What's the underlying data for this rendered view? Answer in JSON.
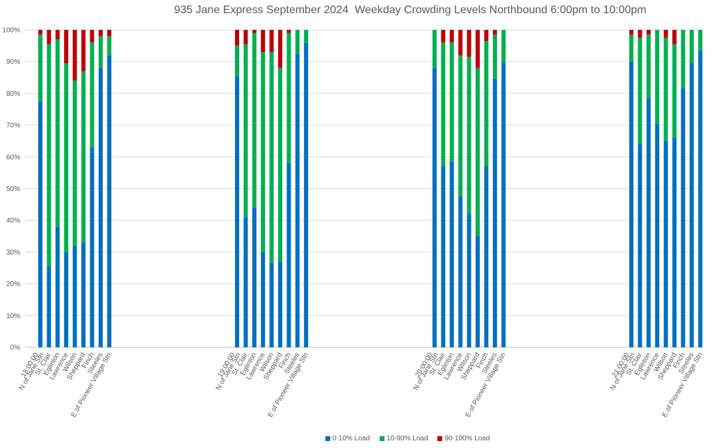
{
  "chart_data": {
    "type": "bar",
    "stacked": true,
    "title": "935 Jane Express September 2024  Weekday Crowding Levels Northbound 6:00pm to 10:00pm",
    "ylim": [
      0,
      100
    ],
    "y_ticks": [
      "0%",
      "10%",
      "20%",
      "30%",
      "40%",
      "50%",
      "60%",
      "70%",
      "80%",
      "90%",
      "100%"
    ],
    "grid": true,
    "legend_position": "bottom",
    "groups": [
      {
        "time": "18:00:00",
        "categories": [
          "N of Jane Stn",
          "St. Clair",
          "Eglinton",
          "Lawrence",
          "Wilson",
          "Sheppard",
          "Finch",
          "Steeles",
          "E of Pioneer Village Stn"
        ],
        "series": [
          {
            "name": "0-10% Load",
            "values": [
              77.5,
              25.5,
              38,
              30,
              32,
              33,
              63,
              88,
              92
            ]
          },
          {
            "name": "10-90% Load",
            "values": [
              21,
              70,
              59,
              59.5,
              52,
              54,
              33,
              10,
              6
            ]
          },
          {
            "name": "90-100% Load",
            "values": [
              1.5,
              4.5,
              3,
              10.5,
              16,
              13,
              4,
              2,
              2
            ]
          }
        ]
      },
      {
        "time": "19:00:00",
        "categories": [
          "N of Jane Stn",
          "St. Clair",
          "Eglinton",
          "Lawrence",
          "Wilson",
          "Sheppard",
          "Finch",
          "Steeles",
          "E of Pioneer Village Stn"
        ],
        "series": [
          {
            "name": "0-10% Load",
            "values": [
              85.5,
              41,
              44,
              30,
              26.5,
              27,
              58,
              92.5,
              96
            ]
          },
          {
            "name": "10-90% Load",
            "values": [
              9.5,
              54.5,
              55,
              63,
              66.5,
              61,
              41,
              7.5,
              4
            ]
          },
          {
            "name": "90-100% Load",
            "values": [
              5,
              4.5,
              1,
              7,
              7,
              12,
              1,
              0,
              0
            ]
          }
        ]
      },
      {
        "time": "20:00:00",
        "categories": [
          "N of Jane Stn",
          "St. Clair",
          "Eglinton",
          "Lawrence",
          "Wilson",
          "Sheppard",
          "Finch",
          "Steeles",
          "E of Pioneer Village Stn"
        ],
        "series": [
          {
            "name": "0-10% Load",
            "values": [
              88,
              57,
              58.5,
              47.5,
              42,
              35,
              57,
              84.5,
              89.5
            ]
          },
          {
            "name": "10-90% Load",
            "values": [
              12,
              39,
              37.5,
              44.5,
              49.5,
              53,
              39.5,
              14,
              10.5
            ]
          },
          {
            "name": "90-100% Load",
            "values": [
              0,
              4,
              4,
              8,
              8.5,
              12,
              3.5,
              1.5,
              0
            ]
          }
        ]
      },
      {
        "time": "21:00:00",
        "categories": [
          "N of Jane Stn",
          "St. Clair",
          "Eglinton",
          "Lawrence",
          "Wilson",
          "Sheppard",
          "Finch",
          "Steeles",
          "E of Pioneer Village Stn"
        ],
        "series": [
          {
            "name": "0-10% Load",
            "values": [
              90,
              64,
              78.5,
              70.5,
              65,
              66,
              81.5,
              89.5,
              93.5
            ]
          },
          {
            "name": "10-90% Load",
            "values": [
              8.5,
              33.5,
              20,
              29.5,
              32.5,
              29.5,
              18.5,
              10.5,
              6.5
            ]
          },
          {
            "name": "90-100% Load",
            "values": [
              1.5,
              2.5,
              1.5,
              0,
              2.5,
              4.5,
              0,
              0,
              0
            ]
          }
        ]
      }
    ],
    "colors": {
      "0-10% Load": "#0070c0",
      "10-90% Load": "#00b050",
      "90-100% Load": "#c00000"
    }
  }
}
